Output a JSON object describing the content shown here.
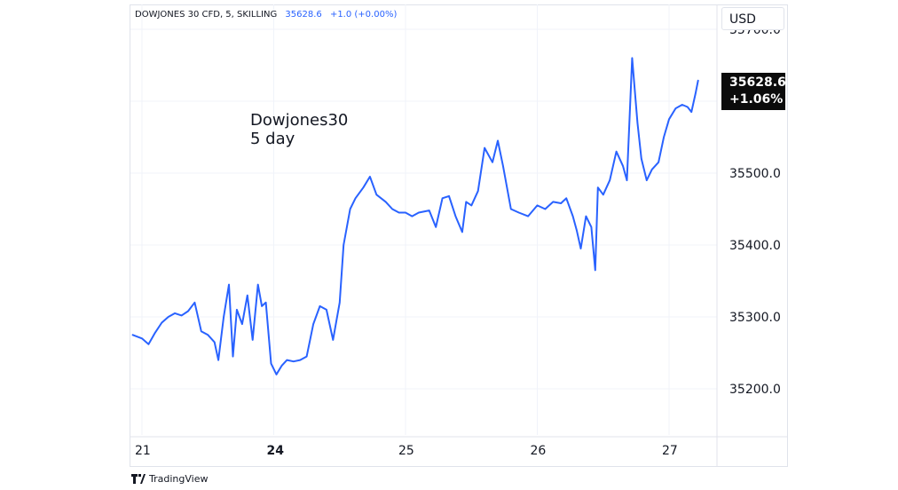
{
  "header": {
    "symbol": "DOWJONES 30 CFD, 5, SKILLING",
    "price": "35628.6",
    "change": "+1.0 (+0.00%)"
  },
  "currency_button": "USD",
  "annotation": {
    "line1": "Dowjones30",
    "line2": "5 day"
  },
  "last_price_tag": {
    "price": "35628.6",
    "change": "+1.06%"
  },
  "brand": "TradingView",
  "colors": {
    "line": "#2962ff",
    "grid": "#f0f3fa",
    "text": "#131722",
    "tag_bg": "#0b0b0b"
  },
  "chart_data": {
    "type": "line",
    "title": "",
    "xlabel": "",
    "ylabel": "",
    "ylim": [
      35134,
      35733
    ],
    "xlim": [
      0,
      4.4
    ],
    "grid": true,
    "y_ticks": [
      35200.0,
      35300.0,
      35400.0,
      35500.0,
      35600.0,
      35700.0
    ],
    "y_tick_labels": [
      "35200.0",
      "35300.0",
      "35400.0",
      "35500.0",
      "35600.0",
      "35700.0"
    ],
    "x_ticks": [
      0,
      1,
      2,
      3,
      4
    ],
    "x_tick_labels": [
      "21",
      "24",
      "25",
      "26",
      "27"
    ],
    "series": [
      {
        "values": [
          [
            -0.07,
            35275
          ],
          [
            0.0,
            35270
          ],
          [
            0.05,
            35262
          ],
          [
            0.1,
            35278
          ],
          [
            0.15,
            35292
          ],
          [
            0.2,
            35300
          ],
          [
            0.25,
            35305
          ],
          [
            0.3,
            35302
          ],
          [
            0.35,
            35308
          ],
          [
            0.4,
            35320
          ],
          [
            0.45,
            35280
          ],
          [
            0.5,
            35275
          ],
          [
            0.55,
            35265
          ],
          [
            0.58,
            35240
          ],
          [
            0.62,
            35300
          ],
          [
            0.66,
            35345
          ],
          [
            0.69,
            35245
          ],
          [
            0.72,
            35310
          ],
          [
            0.76,
            35290
          ],
          [
            0.8,
            35330
          ],
          [
            0.84,
            35268
          ],
          [
            0.88,
            35345
          ],
          [
            0.91,
            35315
          ],
          [
            0.94,
            35320
          ],
          [
            0.98,
            35235
          ],
          [
            1.02,
            35220
          ],
          [
            1.06,
            35232
          ],
          [
            1.1,
            35240
          ],
          [
            1.15,
            35238
          ],
          [
            1.2,
            35240
          ],
          [
            1.25,
            35245
          ],
          [
            1.3,
            35290
          ],
          [
            1.35,
            35315
          ],
          [
            1.4,
            35310
          ],
          [
            1.45,
            35268
          ],
          [
            1.5,
            35320
          ],
          [
            1.53,
            35400
          ],
          [
            1.58,
            35450
          ],
          [
            1.62,
            35465
          ],
          [
            1.68,
            35480
          ],
          [
            1.73,
            35495
          ],
          [
            1.78,
            35470
          ],
          [
            1.85,
            35460
          ],
          [
            1.9,
            35450
          ],
          [
            1.95,
            35445
          ],
          [
            2.0,
            35445
          ],
          [
            2.05,
            35440
          ],
          [
            2.1,
            35445
          ],
          [
            2.18,
            35448
          ],
          [
            2.23,
            35425
          ],
          [
            2.28,
            35465
          ],
          [
            2.33,
            35468
          ],
          [
            2.38,
            35440
          ],
          [
            2.43,
            35418
          ],
          [
            2.46,
            35460
          ],
          [
            2.5,
            35455
          ],
          [
            2.55,
            35475
          ],
          [
            2.6,
            35535
          ],
          [
            2.66,
            35515
          ],
          [
            2.7,
            35545
          ],
          [
            2.74,
            35510
          ],
          [
            2.8,
            35450
          ],
          [
            2.86,
            35445
          ],
          [
            2.93,
            35440
          ],
          [
            3.0,
            35455
          ],
          [
            3.06,
            35450
          ],
          [
            3.12,
            35460
          ],
          [
            3.18,
            35458
          ],
          [
            3.22,
            35465
          ],
          [
            3.27,
            35440
          ],
          [
            3.3,
            35420
          ],
          [
            3.33,
            35395
          ],
          [
            3.37,
            35440
          ],
          [
            3.41,
            35425
          ],
          [
            3.44,
            35365
          ],
          [
            3.46,
            35480
          ],
          [
            3.5,
            35470
          ],
          [
            3.55,
            35490
          ],
          [
            3.6,
            35530
          ],
          [
            3.65,
            35510
          ],
          [
            3.68,
            35490
          ],
          [
            3.72,
            35660
          ],
          [
            3.76,
            35570
          ],
          [
            3.79,
            35520
          ],
          [
            3.83,
            35490
          ],
          [
            3.87,
            35505
          ],
          [
            3.92,
            35515
          ],
          [
            3.96,
            35550
          ],
          [
            4.0,
            35575
          ],
          [
            4.05,
            35590
          ],
          [
            4.1,
            35595
          ],
          [
            4.14,
            35592
          ],
          [
            4.17,
            35585
          ],
          [
            4.2,
            35610
          ],
          [
            4.22,
            35628.6
          ]
        ]
      }
    ]
  }
}
